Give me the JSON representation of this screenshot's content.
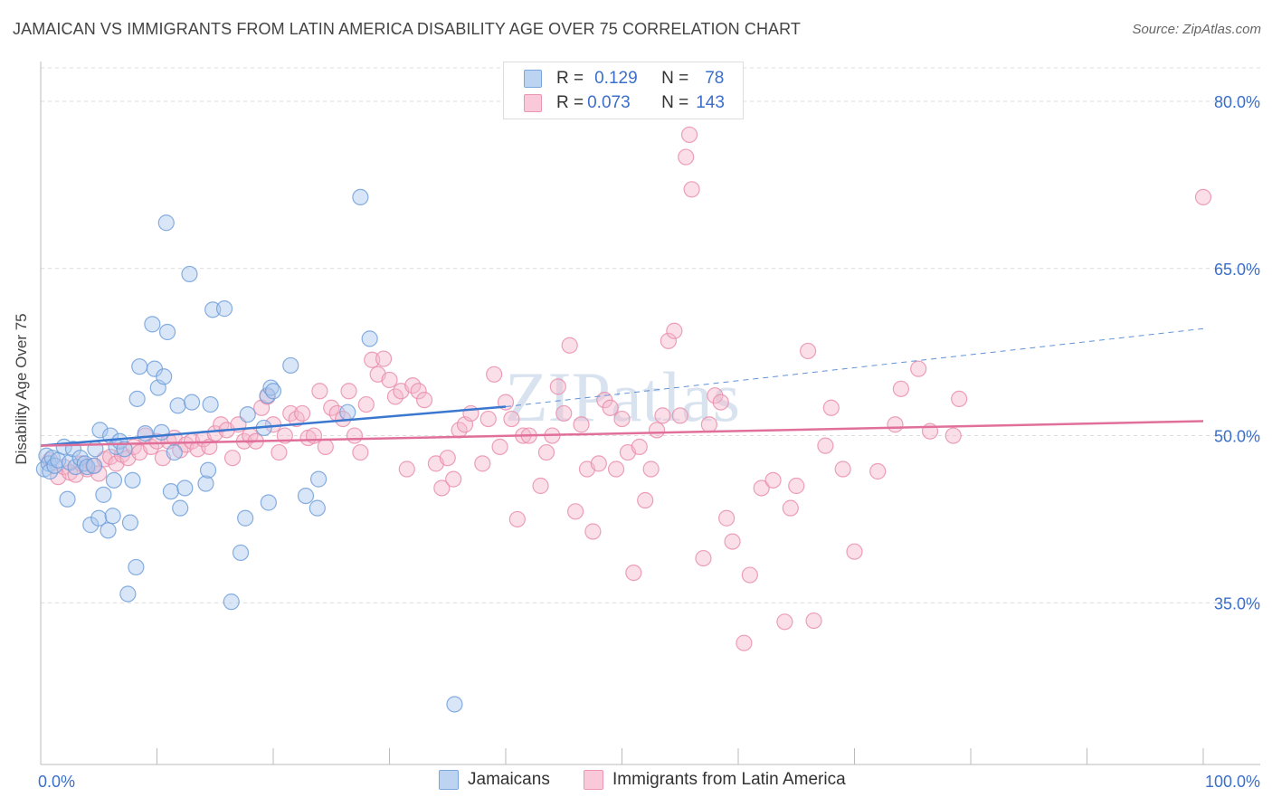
{
  "title": "JAMAICAN VS IMMIGRANTS FROM LATIN AMERICA DISABILITY AGE OVER 75 CORRELATION CHART",
  "source": "Source: ZipAtlas.com",
  "watermark": "ZIPatlas",
  "legend": {
    "rows": [
      {
        "r_label": "R =",
        "r_value": "0.129",
        "n_label": "N =",
        "n_value": "78"
      },
      {
        "r_label": "R =",
        "r_value": "0.073",
        "n_label": "N =",
        "n_value": "143"
      }
    ]
  },
  "bottom_legend": [
    "Jamaicans",
    "Immigrants from Latin America"
  ],
  "colors": {
    "blue_fill": "#aac8ee",
    "blue_stroke": "#6a9bd8",
    "blue_line": "#3a78d0",
    "pink_fill": "#f5b8cc",
    "pink_stroke": "#e889a8",
    "pink_line": "#e0709a",
    "tick_text": "#3b6fc9",
    "grid": "#dcdcdc"
  },
  "chart_data": {
    "type": "scatter",
    "title": "JAMAICAN VS IMMIGRANTS FROM LATIN AMERICA DISABILITY AGE OVER 75 CORRELATION CHART",
    "xlabel": "",
    "ylabel": "Disability Age Over 75",
    "xlim": [
      0,
      100
    ],
    "ylim": [
      20.5,
      83
    ],
    "x_tick_labels": [
      "0.0%",
      "100.0%"
    ],
    "y_ticks": [
      35.0,
      50.0,
      65.0,
      80.0
    ],
    "y_tick_labels": [
      "35.0%",
      "50.0%",
      "65.0%",
      "80.0%"
    ],
    "grid": "horizontal dashed",
    "series": [
      {
        "name": "Jamaicans",
        "r": 0.129,
        "n": 78,
        "trend": {
          "x": [
            0,
            40
          ],
          "y": [
            49.1,
            52.6
          ],
          "dashed_to": [
            100,
            59.6
          ]
        },
        "points": [
          [
            0.3,
            47.0
          ],
          [
            0.5,
            48.2
          ],
          [
            0.7,
            47.5
          ],
          [
            0.8,
            46.8
          ],
          [
            1.0,
            48.0
          ],
          [
            1.2,
            47.3
          ],
          [
            1.5,
            47.8
          ],
          [
            2.0,
            49.0
          ],
          [
            2.3,
            44.3
          ],
          [
            2.5,
            47.6
          ],
          [
            2.8,
            48.8
          ],
          [
            3.0,
            47.2
          ],
          [
            3.4,
            48.0
          ],
          [
            3.8,
            47.5
          ],
          [
            4.0,
            47.2
          ],
          [
            4.3,
            42.0
          ],
          [
            4.6,
            47.3
          ],
          [
            4.7,
            48.8
          ],
          [
            5.0,
            42.6
          ],
          [
            5.1,
            50.5
          ],
          [
            5.4,
            44.7
          ],
          [
            5.8,
            41.5
          ],
          [
            6.0,
            50.0
          ],
          [
            6.2,
            42.8
          ],
          [
            6.3,
            46.0
          ],
          [
            6.5,
            49.0
          ],
          [
            6.8,
            49.5
          ],
          [
            7.2,
            48.8
          ],
          [
            7.5,
            35.8
          ],
          [
            7.7,
            42.2
          ],
          [
            7.9,
            46.0
          ],
          [
            8.2,
            38.2
          ],
          [
            8.3,
            53.3
          ],
          [
            8.5,
            56.2
          ],
          [
            9.0,
            50.2
          ],
          [
            9.6,
            60.0
          ],
          [
            9.8,
            56.0
          ],
          [
            10.1,
            54.3
          ],
          [
            10.4,
            50.3
          ],
          [
            10.6,
            55.3
          ],
          [
            10.8,
            69.1
          ],
          [
            10.9,
            59.3
          ],
          [
            11.2,
            45.0
          ],
          [
            11.5,
            48.5
          ],
          [
            11.8,
            52.7
          ],
          [
            12.0,
            43.5
          ],
          [
            12.4,
            45.3
          ],
          [
            12.8,
            64.5
          ],
          [
            13.0,
            53.0
          ],
          [
            14.2,
            45.7
          ],
          [
            14.4,
            46.9
          ],
          [
            14.6,
            52.8
          ],
          [
            14.8,
            61.3
          ],
          [
            15.8,
            61.4
          ],
          [
            16.4,
            35.1
          ],
          [
            17.2,
            39.5
          ],
          [
            17.6,
            42.6
          ],
          [
            17.8,
            51.9
          ],
          [
            19.2,
            50.7
          ],
          [
            19.6,
            44.0
          ],
          [
            19.5,
            53.6
          ],
          [
            19.8,
            54.3
          ],
          [
            20.0,
            54.0
          ],
          [
            21.5,
            56.3
          ],
          [
            22.8,
            44.6
          ],
          [
            23.8,
            43.5
          ],
          [
            23.9,
            46.1
          ],
          [
            26.4,
            52.1
          ],
          [
            27.5,
            71.4
          ],
          [
            28.3,
            58.7
          ],
          [
            35.6,
            25.9
          ]
        ]
      },
      {
        "name": "Immigrants from Latin America",
        "r": 0.073,
        "n": 143,
        "trend": {
          "x": [
            0,
            100
          ],
          "y": [
            49.1,
            51.3
          ]
        },
        "points": [
          [
            0.8,
            47.8
          ],
          [
            1.5,
            46.3
          ],
          [
            2.0,
            47.2
          ],
          [
            2.5,
            46.7
          ],
          [
            3.0,
            46.5
          ],
          [
            3.5,
            47.5
          ],
          [
            4.0,
            47.0
          ],
          [
            4.5,
            47.3
          ],
          [
            5.0,
            46.6
          ],
          [
            5.5,
            47.9
          ],
          [
            6.0,
            48.1
          ],
          [
            6.5,
            47.5
          ],
          [
            7.0,
            48.3
          ],
          [
            7.5,
            48.0
          ],
          [
            8.0,
            49.0
          ],
          [
            8.5,
            48.5
          ],
          [
            9.0,
            50.0
          ],
          [
            9.5,
            49.0
          ],
          [
            10.0,
            49.5
          ],
          [
            10.5,
            48.0
          ],
          [
            11.0,
            49.5
          ],
          [
            11.5,
            49.8
          ],
          [
            12.0,
            48.7
          ],
          [
            12.5,
            49.2
          ],
          [
            13.0,
            49.5
          ],
          [
            13.5,
            48.8
          ],
          [
            14.0,
            49.7
          ],
          [
            14.5,
            49.0
          ],
          [
            15.0,
            50.2
          ],
          [
            15.5,
            51.0
          ],
          [
            16.0,
            50.5
          ],
          [
            16.5,
            48.0
          ],
          [
            17.0,
            51.0
          ],
          [
            17.5,
            49.5
          ],
          [
            18.0,
            50.0
          ],
          [
            18.5,
            49.5
          ],
          [
            19.0,
            52.5
          ],
          [
            19.5,
            53.5
          ],
          [
            20.0,
            51.0
          ],
          [
            20.5,
            48.5
          ],
          [
            21.0,
            50.0
          ],
          [
            21.5,
            52.0
          ],
          [
            22.0,
            51.5
          ],
          [
            22.5,
            52.0
          ],
          [
            23.0,
            49.8
          ],
          [
            23.5,
            50.0
          ],
          [
            24.0,
            54.0
          ],
          [
            24.5,
            49.0
          ],
          [
            25.0,
            52.5
          ],
          [
            25.5,
            52.0
          ],
          [
            26.0,
            51.5
          ],
          [
            26.5,
            54.0
          ],
          [
            27.0,
            50.0
          ],
          [
            27.5,
            48.5
          ],
          [
            28.0,
            52.8
          ],
          [
            28.5,
            56.8
          ],
          [
            29.0,
            55.5
          ],
          [
            29.5,
            56.9
          ],
          [
            30.0,
            55.0
          ],
          [
            30.5,
            53.5
          ],
          [
            31.0,
            54.0
          ],
          [
            31.5,
            47.0
          ],
          [
            32.0,
            54.5
          ],
          [
            32.5,
            54.0
          ],
          [
            33.0,
            53.2
          ],
          [
            34.0,
            47.5
          ],
          [
            34.5,
            45.3
          ],
          [
            35.0,
            48.0
          ],
          [
            35.5,
            46.1
          ],
          [
            36.0,
            50.5
          ],
          [
            36.5,
            51.0
          ],
          [
            37.0,
            52.0
          ],
          [
            38.0,
            47.5
          ],
          [
            38.5,
            51.5
          ],
          [
            39.0,
            55.5
          ],
          [
            39.5,
            49.0
          ],
          [
            40.0,
            53.0
          ],
          [
            40.5,
            51.5
          ],
          [
            41.0,
            42.5
          ],
          [
            41.5,
            50.0
          ],
          [
            42.0,
            50.0
          ],
          [
            43.0,
            45.5
          ],
          [
            43.5,
            48.5
          ],
          [
            44.0,
            50.0
          ],
          [
            44.5,
            54.4
          ],
          [
            45.0,
            52.0
          ],
          [
            45.5,
            58.1
          ],
          [
            46.0,
            43.2
          ],
          [
            46.5,
            51.0
          ],
          [
            47.0,
            47.0
          ],
          [
            47.5,
            41.4
          ],
          [
            48.0,
            47.5
          ],
          [
            48.5,
            53.2
          ],
          [
            49.0,
            52.5
          ],
          [
            49.5,
            47.0
          ],
          [
            50.0,
            51.5
          ],
          [
            50.5,
            48.5
          ],
          [
            51.0,
            37.7
          ],
          [
            51.5,
            49.0
          ],
          [
            52.0,
            44.2
          ],
          [
            52.5,
            47.0
          ],
          [
            53.0,
            50.5
          ],
          [
            53.5,
            51.8
          ],
          [
            54.0,
            58.5
          ],
          [
            54.5,
            59.4
          ],
          [
            55.0,
            51.8
          ],
          [
            55.5,
            75.0
          ],
          [
            55.8,
            77.0
          ],
          [
            56.0,
            72.1
          ],
          [
            57.0,
            39.0
          ],
          [
            57.5,
            51.0
          ],
          [
            58.0,
            53.6
          ],
          [
            58.5,
            53.0
          ],
          [
            59.0,
            42.6
          ],
          [
            59.5,
            40.5
          ],
          [
            60.5,
            31.4
          ],
          [
            61.0,
            37.5
          ],
          [
            62.0,
            45.3
          ],
          [
            63.0,
            46.0
          ],
          [
            64.0,
            33.3
          ],
          [
            64.5,
            43.5
          ],
          [
            65.0,
            45.5
          ],
          [
            66.0,
            57.6
          ],
          [
            66.5,
            33.4
          ],
          [
            67.5,
            49.1
          ],
          [
            68.0,
            52.5
          ],
          [
            69.0,
            47.0
          ],
          [
            70.0,
            39.6
          ],
          [
            72.0,
            46.8
          ],
          [
            73.5,
            51.0
          ],
          [
            74.0,
            54.2
          ],
          [
            75.5,
            56.0
          ],
          [
            76.5,
            50.4
          ],
          [
            78.5,
            50.0
          ],
          [
            79.0,
            53.3
          ],
          [
            100.0,
            71.4
          ]
        ]
      }
    ]
  }
}
